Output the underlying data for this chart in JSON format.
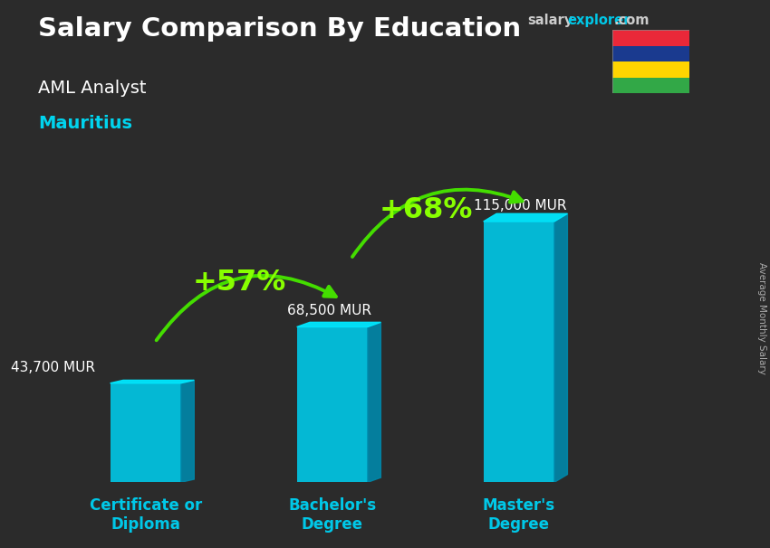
{
  "title_main": "Salary Comparison By Education",
  "subtitle_job": "AML Analyst",
  "subtitle_country": "Mauritius",
  "ylabel": "Average Monthly Salary",
  "categories": [
    "Certificate or\nDiploma",
    "Bachelor's\nDegree",
    "Master's\nDegree"
  ],
  "values": [
    43700,
    68500,
    115000
  ],
  "value_labels": [
    "43,700 MUR",
    "68,500 MUR",
    "115,000 MUR"
  ],
  "pct_labels": [
    "+57%",
    "+68%"
  ],
  "bar_face_color": "#00c8e8",
  "bar_right_color": "#0088aa",
  "bar_top_color": "#00e8ff",
  "bg_color": "#2b2b2b",
  "title_color": "#ffffff",
  "subtitle_job_color": "#ffffff",
  "subtitle_country_color": "#00d4ee",
  "value_label_color": "#ffffff",
  "pct_color": "#88ff00",
  "category_color": "#00c8e8",
  "arrow_color": "#44dd00",
  "salary_color": "#cccccc",
  "explorer_color": "#00c8e8",
  "ylim": [
    0,
    145000
  ],
  "bar_width": 0.38,
  "bar_depth_x": 0.07,
  "bar_depth_y": 0.03,
  "flag_colors": [
    "#EA2839",
    "#1A3A8F",
    "#FFD500",
    "#32A847"
  ],
  "xlim": [
    -0.45,
    2.85
  ]
}
